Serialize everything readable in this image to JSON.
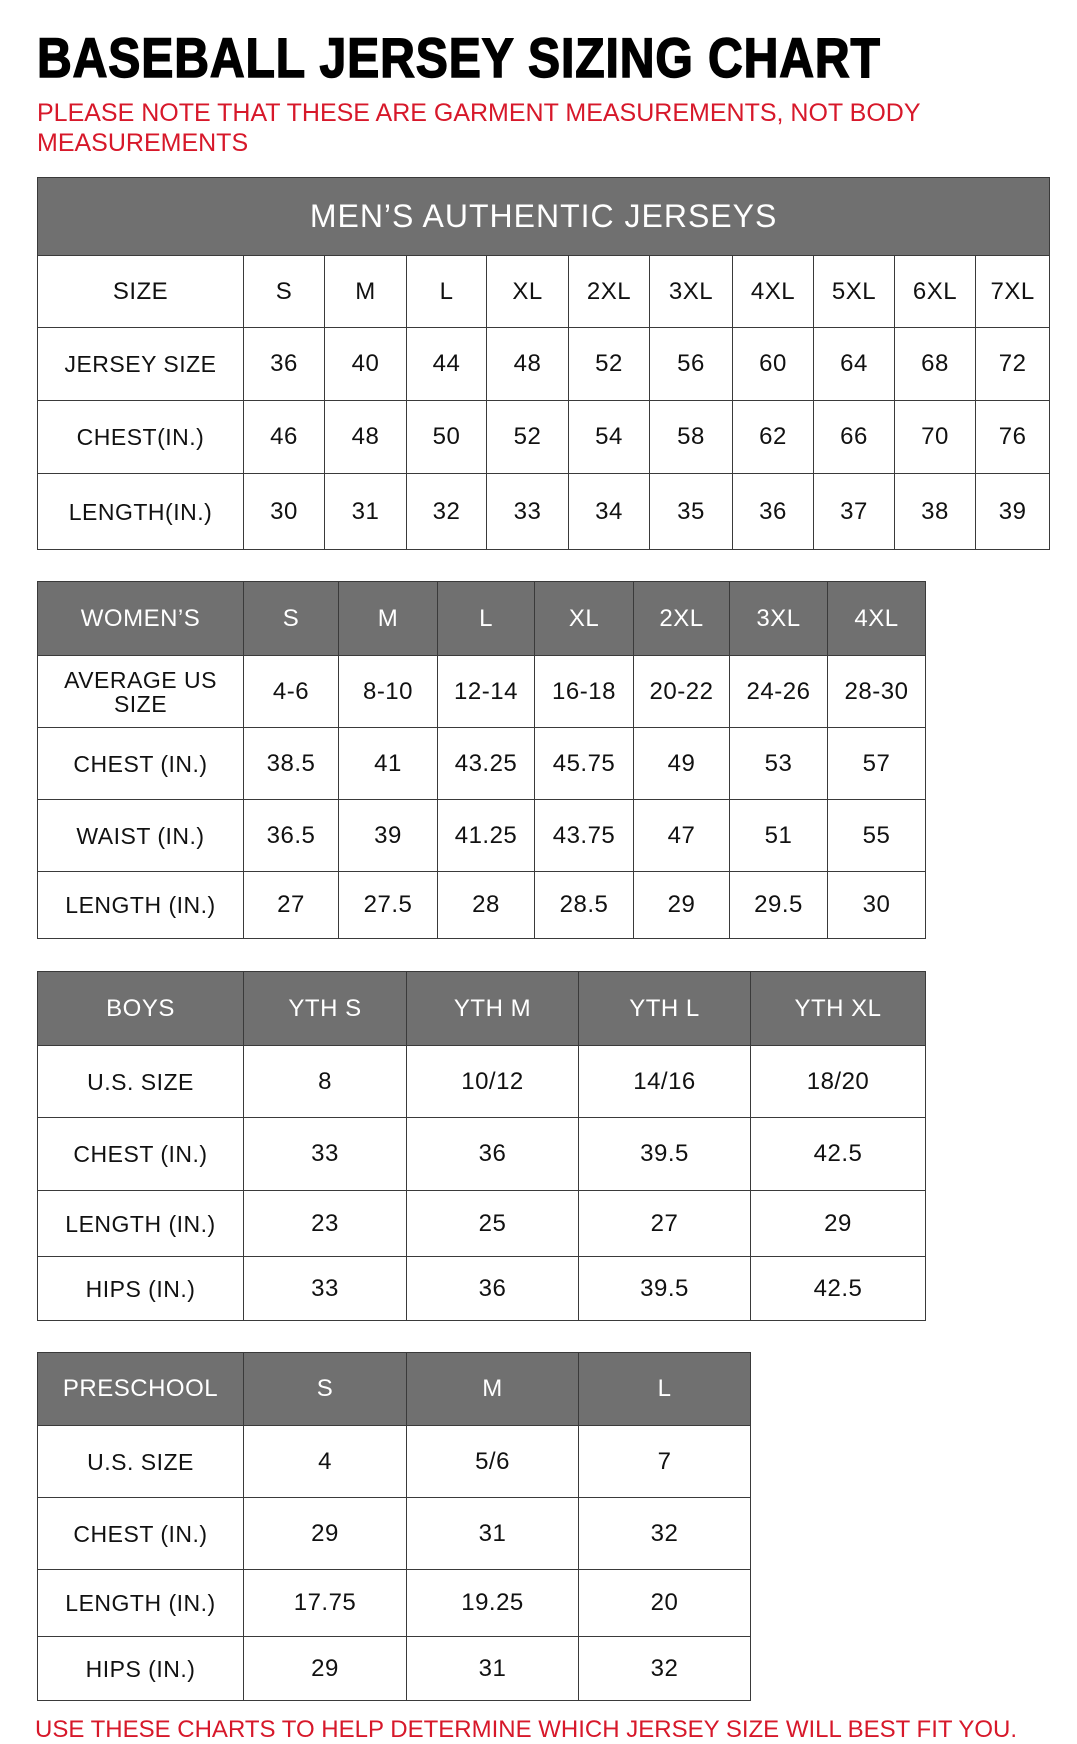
{
  "title": "BASEBALL JERSEY SIZING CHART",
  "note": "PLEASE NOTE THAT THESE ARE GARMENT MEASUREMENTS, NOT BODY MEASUREMENTS",
  "footer": "USE THESE CHARTS TO HELP DETERMINE WHICH JERSEY SIZE WILL BEST FIT YOU.",
  "colors": {
    "header_bg": "#707070",
    "note_red": "#d7182a"
  },
  "tables": [
    {
      "id": "mens",
      "banner": "MEN’S AUTHENTIC JERSEYS",
      "header": [
        "SIZE",
        "S",
        "M",
        "L",
        "XL",
        "2XL",
        "3XL",
        "4XL",
        "5XL",
        "6XL",
        "7XL"
      ],
      "header_style": "plain",
      "rows": [
        [
          "JERSEY SIZE",
          "36",
          "40",
          "44",
          "48",
          "52",
          "56",
          "60",
          "64",
          "68",
          "72"
        ],
        [
          "CHEST(IN.)",
          "46",
          "48",
          "50",
          "52",
          "54",
          "58",
          "62",
          "66",
          "70",
          "76"
        ],
        [
          "LENGTH(IN.)",
          "30",
          "31",
          "32",
          "33",
          "34",
          "35",
          "36",
          "37",
          "38",
          "39"
        ]
      ]
    },
    {
      "id": "womens",
      "header": [
        "WOMEN’S",
        "S",
        "M",
        "L",
        "XL",
        "2XL",
        "3XL",
        "4XL"
      ],
      "header_style": "gray",
      "rows": [
        [
          "AVERAGE US SIZE",
          "4-6",
          "8-10",
          "12-14",
          "16-18",
          "20-22",
          "24-26",
          "28-30"
        ],
        [
          "CHEST (IN.)",
          "38.5",
          "41",
          "43.25",
          "45.75",
          "49",
          "53",
          "57"
        ],
        [
          "WAIST (IN.)",
          "36.5",
          "39",
          "41.25",
          "43.75",
          "47",
          "51",
          "55"
        ],
        [
          "LENGTH (IN.)",
          "27",
          "27.5",
          "28",
          "28.5",
          "29",
          "29.5",
          "30"
        ]
      ]
    },
    {
      "id": "boys",
      "header": [
        "BOYS",
        "YTH S",
        "YTH M",
        "YTH L",
        "YTH XL"
      ],
      "header_style": "gray",
      "rows": [
        [
          "U.S. SIZE",
          "8",
          "10/12",
          "14/16",
          "18/20"
        ],
        [
          "CHEST (IN.)",
          "33",
          "36",
          "39.5",
          "42.5"
        ],
        [
          "LENGTH (IN.)",
          "23",
          "25",
          "27",
          "29"
        ],
        [
          "HIPS (IN.)",
          "33",
          "36",
          "39.5",
          "42.5"
        ]
      ]
    },
    {
      "id": "preschool",
      "header": [
        "PRESCHOOL",
        "S",
        "M",
        "L"
      ],
      "header_style": "gray",
      "rows": [
        [
          "U.S. SIZE",
          "4",
          "5/6",
          "7"
        ],
        [
          "CHEST (IN.)",
          "29",
          "31",
          "32"
        ],
        [
          "LENGTH (IN.)",
          "17.75",
          "19.25",
          "20"
        ],
        [
          "HIPS (IN.)",
          "29",
          "31",
          "32"
        ]
      ]
    }
  ]
}
